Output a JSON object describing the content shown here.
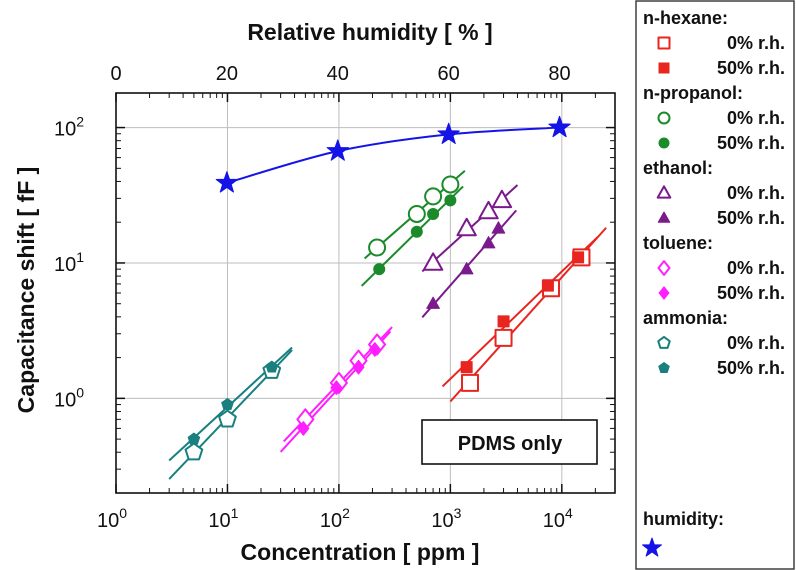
{
  "chart_data": {
    "type": "scatter",
    "xlabel": "Concentration  [ ppm ]",
    "ylabel": "Capacitance shift  [ fF ]",
    "top_xlabel": "Relative humidity  [ % ]",
    "xscale": "log",
    "yscale": "log",
    "xlim": [
      1,
      30000
    ],
    "ylim": [
      0.2,
      180
    ],
    "top_xlim": [
      0,
      90
    ],
    "grid": true,
    "x_ticks": [
      {
        "value": 1,
        "base": "10",
        "exp": "0"
      },
      {
        "value": 10,
        "base": "10",
        "exp": "1"
      },
      {
        "value": 100,
        "base": "10",
        "exp": "2"
      },
      {
        "value": 1000,
        "base": "10",
        "exp": "3"
      },
      {
        "value": 10000,
        "base": "10",
        "exp": "4"
      }
    ],
    "y_ticks": [
      {
        "value": 1,
        "base": "10",
        "exp": "0"
      },
      {
        "value": 10,
        "base": "10",
        "exp": "1"
      },
      {
        "value": 100,
        "base": "10",
        "exp": "2"
      }
    ],
    "top_ticks": [
      0,
      20,
      40,
      60,
      80
    ],
    "annotation": "PDMS only",
    "legend_position": "right",
    "legend_groups": [
      {
        "title": "n-hexane:",
        "entries": [
          "0% r.h.",
          "50% r.h."
        ]
      },
      {
        "title": "n-propanol:",
        "entries": [
          "0% r.h.",
          "50% r.h."
        ]
      },
      {
        "title": "ethanol:",
        "entries": [
          "0% r.h.",
          "50% r.h."
        ]
      },
      {
        "title": "toluene:",
        "entries": [
          "0% r.h.",
          "50% r.h."
        ]
      },
      {
        "title": "ammonia:",
        "entries": [
          "0% r.h.",
          "50% r.h."
        ]
      }
    ],
    "humidity_legend_title": "humidity:",
    "series": [
      {
        "analyte": "n-hexane",
        "rh": "0% r.h.",
        "marker": "square",
        "filled": false,
        "color": "#e8251f",
        "x": [
          1500,
          3000,
          8000,
          15000
        ],
        "y": [
          1.3,
          2.8,
          6.5,
          11.0
        ],
        "fit_x": [
          1000,
          25000
        ]
      },
      {
        "analyte": "n-hexane",
        "rh": "50% r.h.",
        "marker": "square",
        "filled": true,
        "color": "#e8251f",
        "x": [
          1400,
          3000,
          7500,
          14000
        ],
        "y": [
          1.7,
          3.7,
          6.8,
          11.0
        ],
        "fit_x": [
          850,
          21000
        ]
      },
      {
        "analyte": "n-propanol",
        "rh": "0% r.h.",
        "marker": "circle",
        "filled": false,
        "color": "#1b8a2a",
        "x": [
          220,
          500,
          700,
          1000
        ],
        "y": [
          13,
          23,
          31,
          38
        ],
        "fit_x": [
          170,
          1350
        ]
      },
      {
        "analyte": "n-propanol",
        "rh": "50% r.h.",
        "marker": "circle",
        "filled": true,
        "color": "#1b8a2a",
        "x": [
          230,
          500,
          700,
          1000
        ],
        "y": [
          9,
          17,
          23,
          29
        ],
        "fit_x": [
          160,
          1300
        ]
      },
      {
        "analyte": "ethanol",
        "rh": "0% r.h.",
        "marker": "triangle",
        "filled": false,
        "color": "#7a1a8c",
        "x": [
          700,
          1400,
          2200,
          2900
        ],
        "y": [
          10,
          18,
          24,
          29
        ],
        "fit_x": [
          560,
          4000
        ]
      },
      {
        "analyte": "ethanol",
        "rh": "50% r.h.",
        "marker": "triangle",
        "filled": true,
        "color": "#7a1a8c",
        "x": [
          700,
          1400,
          2200,
          2700
        ],
        "y": [
          5,
          9,
          14,
          18
        ],
        "fit_x": [
          560,
          3900
        ]
      },
      {
        "analyte": "toluene",
        "rh": "0% r.h.",
        "marker": "diamond",
        "filled": false,
        "color": "#ff1fff",
        "x": [
          50,
          100,
          150,
          220
        ],
        "y": [
          0.7,
          1.3,
          1.9,
          2.5
        ],
        "fit_x": [
          32,
          300
        ]
      },
      {
        "analyte": "toluene",
        "rh": "50% r.h.",
        "marker": "diamond",
        "filled": true,
        "color": "#ff1fff",
        "x": [
          48,
          95,
          150,
          210
        ],
        "y": [
          0.6,
          1.2,
          1.7,
          2.3
        ],
        "fit_x": [
          30,
          290
        ]
      },
      {
        "analyte": "ammonia",
        "rh": "0% r.h.",
        "marker": "pentagon",
        "filled": false,
        "color": "#1a7f7f",
        "x": [
          5,
          10,
          25
        ],
        "y": [
          0.4,
          0.7,
          1.6
        ],
        "fit_x": [
          3,
          38
        ]
      },
      {
        "analyte": "ammonia",
        "rh": "50% r.h.",
        "marker": "pentagon",
        "filled": true,
        "color": "#1a7f7f",
        "x": [
          5,
          10,
          25
        ],
        "y": [
          0.5,
          0.9,
          1.7
        ],
        "fit_x": [
          3,
          38
        ]
      }
    ],
    "humidity_series": {
      "marker": "star",
      "color": "#1414e6",
      "rh": [
        20,
        40,
        60,
        80
      ],
      "y": [
        39,
        67,
        89,
        100
      ]
    }
  }
}
